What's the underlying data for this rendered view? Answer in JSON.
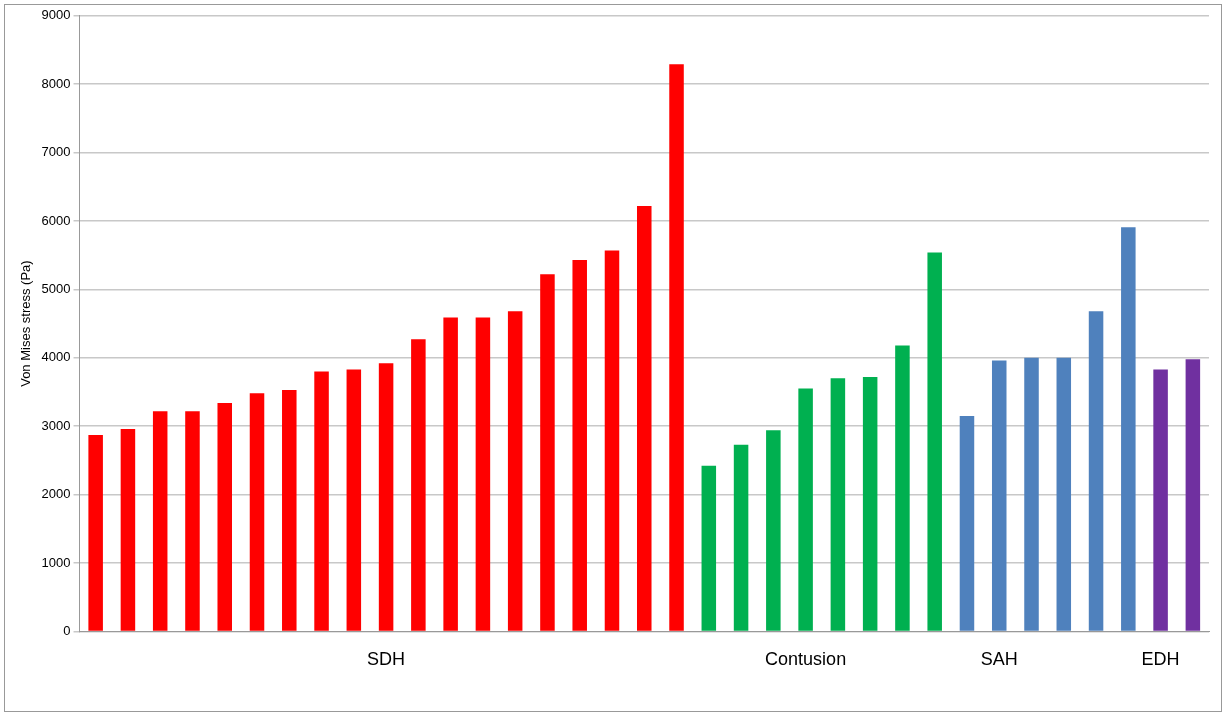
{
  "chart_data": {
    "type": "bar",
    "ylabel": "Von Mises stress (Pa)",
    "categories": [
      null,
      null,
      null,
      null,
      null,
      null,
      null,
      null,
      null,
      "SDH",
      null,
      null,
      null,
      null,
      null,
      null,
      null,
      null,
      null,
      null,
      null,
      null,
      "Contusion",
      null,
      null,
      null,
      null,
      null,
      "SAH",
      null,
      null,
      null,
      null,
      "EDH",
      null
    ],
    "values": [
      2870,
      2960,
      3220,
      3220,
      3340,
      3480,
      3530,
      3800,
      3830,
      3920,
      4270,
      4590,
      4590,
      4680,
      5220,
      5430,
      5570,
      6220,
      8290,
      2420,
      2730,
      2940,
      3550,
      3700,
      3720,
      4180,
      5540,
      3150,
      3960,
      4000,
      4000,
      4680,
      5910,
      3830,
      3980
    ],
    "colors": [
      "#ff0000",
      "#ff0000",
      "#ff0000",
      "#ff0000",
      "#ff0000",
      "#ff0000",
      "#ff0000",
      "#ff0000",
      "#ff0000",
      "#ff0000",
      "#ff0000",
      "#ff0000",
      "#ff0000",
      "#ff0000",
      "#ff0000",
      "#ff0000",
      "#ff0000",
      "#ff0000",
      "#ff0000",
      "#00b050",
      "#00b050",
      "#00b050",
      "#00b050",
      "#00b050",
      "#00b050",
      "#00b050",
      "#00b050",
      "#4f81bd",
      "#4f81bd",
      "#4f81bd",
      "#4f81bd",
      "#4f81bd",
      "#4f81bd",
      "#7030a0",
      "#7030a0"
    ],
    "ylim": [
      0,
      9000
    ],
    "yticks": [
      0,
      1000,
      2000,
      3000,
      4000,
      5000,
      6000,
      7000,
      8000,
      9000
    ],
    "grid": "y"
  }
}
